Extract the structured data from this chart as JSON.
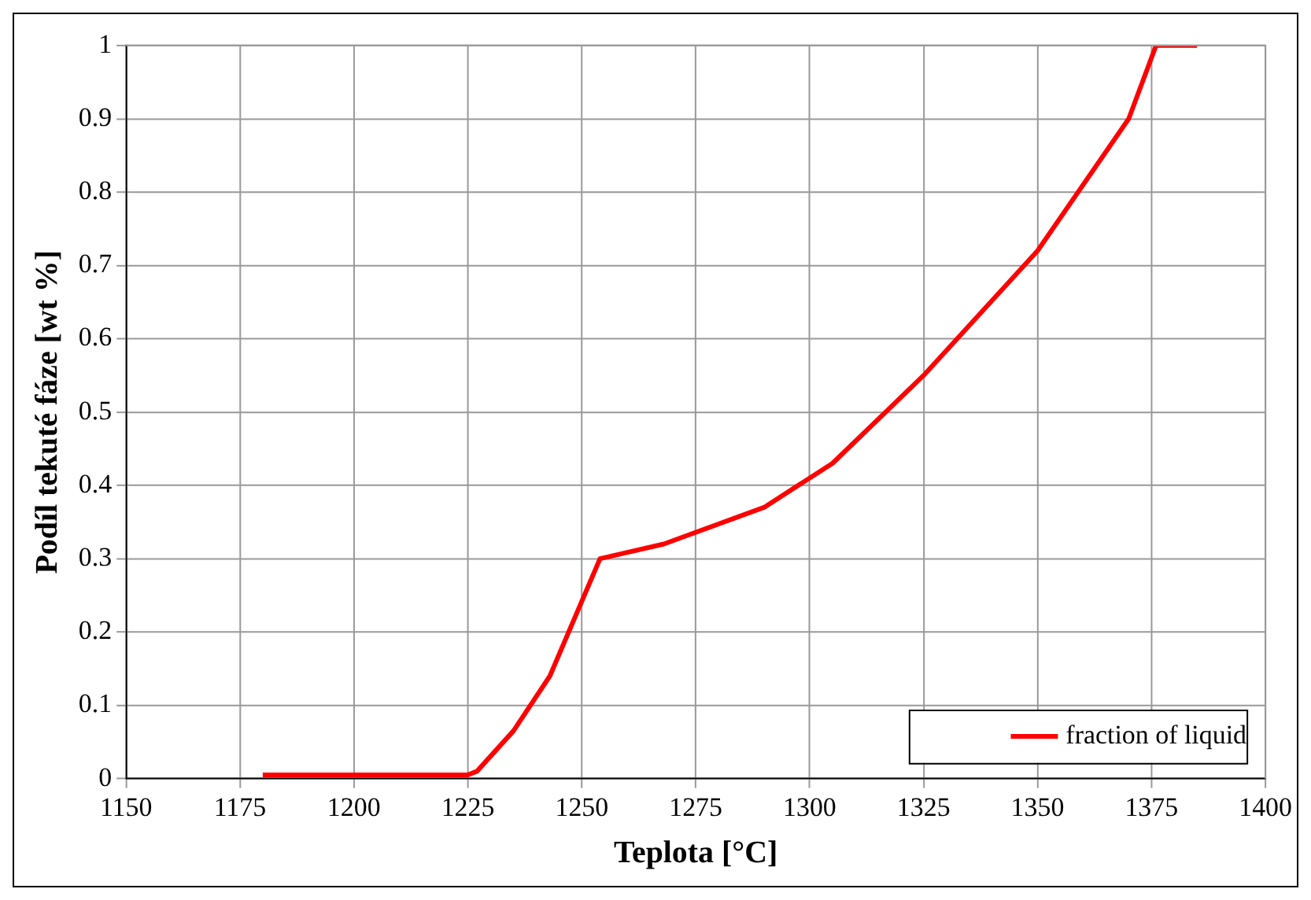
{
  "chart_data": {
    "type": "line",
    "xlabel": "Teplota [°C]",
    "ylabel": "Podíl tekuté fáze [wt %]",
    "series": [
      {
        "name": "fraction of liquid",
        "color": "#ff0000",
        "x": [
          1180,
          1225,
          1227,
          1235,
          1243,
          1254,
          1268,
          1290,
          1305,
          1325,
          1350,
          1370,
          1376,
          1385
        ],
        "values": [
          0.005,
          0.005,
          0.01,
          0.065,
          0.14,
          0.3,
          0.32,
          0.37,
          0.43,
          0.55,
          0.72,
          0.9,
          1.0,
          1.0
        ]
      }
    ],
    "xlim": [
      1150,
      1400
    ],
    "xticks": [
      1150,
      1175,
      1200,
      1225,
      1250,
      1275,
      1300,
      1325,
      1350,
      1375,
      1400
    ],
    "ylim": [
      0,
      1
    ],
    "yticks": [
      0,
      0.1,
      0.2,
      0.3,
      0.4,
      0.5,
      0.6,
      0.7,
      0.8,
      0.9,
      1
    ],
    "grid": true,
    "legend": "bottom right",
    "marker": "none",
    "line_style": "solid"
  }
}
